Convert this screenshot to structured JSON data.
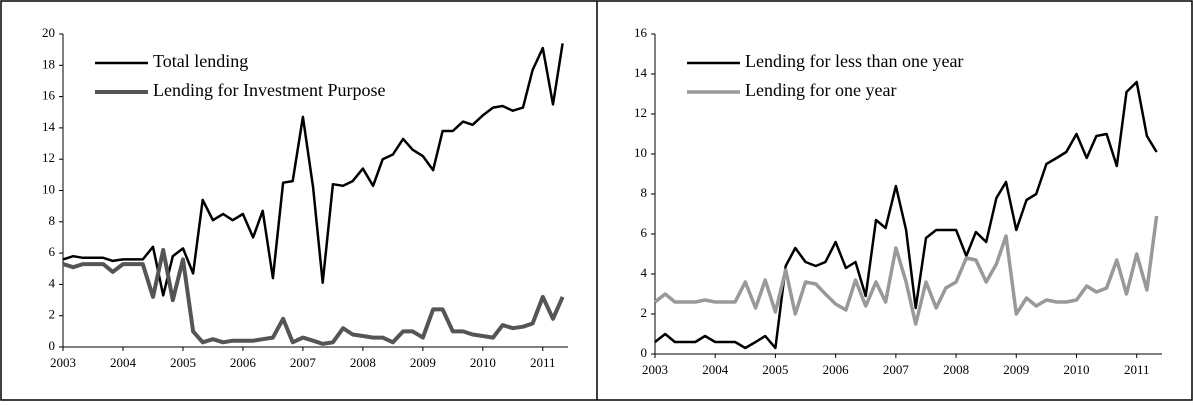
{
  "chart_data": [
    {
      "type": "line",
      "legend": "upper left",
      "x": [
        2003,
        2003.17,
        2003.33,
        2003.5,
        2003.67,
        2003.83,
        2004,
        2004.17,
        2004.33,
        2004.5,
        2004.67,
        2004.83,
        2005,
        2005.17,
        2005.33,
        2005.5,
        2005.67,
        2005.83,
        2006,
        2006.17,
        2006.33,
        2006.5,
        2006.67,
        2006.83,
        2007,
        2007.17,
        2007.33,
        2007.5,
        2007.67,
        2007.83,
        2008,
        2008.17,
        2008.33,
        2008.5,
        2008.67,
        2008.83,
        2009,
        2009.17,
        2009.33,
        2009.5,
        2009.67,
        2009.83,
        2010,
        2010.17,
        2010.33,
        2010.5,
        2010.67,
        2010.83,
        2011,
        2011.17,
        2011.33
      ],
      "xlim": [
        2003,
        2011.42
      ],
      "xticks": [
        2003,
        2004,
        2005,
        2006,
        2007,
        2008,
        2009,
        2010,
        2011
      ],
      "ylim": [
        0,
        20
      ],
      "yticks": [
        0,
        2,
        4,
        6,
        8,
        10,
        12,
        14,
        16,
        18,
        20
      ],
      "series": [
        {
          "name": "Total lending",
          "color": "#000000",
          "values": [
            5.6,
            5.8,
            5.7,
            5.7,
            5.7,
            5.5,
            5.6,
            5.6,
            5.6,
            6.4,
            3.3,
            5.8,
            6.3,
            4.7,
            9.4,
            8.1,
            8.5,
            8.1,
            8.5,
            7.0,
            8.7,
            4.4,
            10.5,
            10.6,
            14.7,
            10.2,
            4.1,
            10.4,
            10.3,
            10.6,
            11.4,
            10.3,
            12.0,
            12.3,
            13.3,
            12.6,
            12.2,
            11.3,
            13.8,
            13.8,
            14.4,
            14.2,
            14.8,
            15.3,
            15.4,
            15.1,
            15.3,
            17.7,
            19.1,
            15.5,
            19.4
          ]
        },
        {
          "name": "Lending for Investment Purpose",
          "color": "#555555",
          "values": [
            5.3,
            5.1,
            5.3,
            5.3,
            5.3,
            4.8,
            5.3,
            5.3,
            5.3,
            3.2,
            6.2,
            3.0,
            5.6,
            1.0,
            0.3,
            0.5,
            0.3,
            0.4,
            0.4,
            0.4,
            0.5,
            0.6,
            1.8,
            0.3,
            0.6,
            0.4,
            0.2,
            0.3,
            1.2,
            0.8,
            0.7,
            0.6,
            0.6,
            0.3,
            1.0,
            1.0,
            0.6,
            2.4,
            2.4,
            1.0,
            1.0,
            0.8,
            0.7,
            0.6,
            1.4,
            1.2,
            1.3,
            1.5,
            3.2,
            1.8,
            3.2
          ]
        }
      ]
    },
    {
      "type": "line",
      "legend": "upper left",
      "x": [
        2003,
        2003.17,
        2003.33,
        2003.5,
        2003.67,
        2003.83,
        2004,
        2004.17,
        2004.33,
        2004.5,
        2004.67,
        2004.83,
        2005,
        2005.17,
        2005.33,
        2005.5,
        2005.67,
        2005.83,
        2006,
        2006.17,
        2006.33,
        2006.5,
        2006.67,
        2006.83,
        2007,
        2007.17,
        2007.33,
        2007.5,
        2007.67,
        2007.83,
        2008,
        2008.17,
        2008.33,
        2008.5,
        2008.67,
        2008.83,
        2009,
        2009.17,
        2009.33,
        2009.5,
        2009.67,
        2009.83,
        2010,
        2010.17,
        2010.33,
        2010.5,
        2010.67,
        2010.83,
        2011,
        2011.17,
        2011.33
      ],
      "xlim": [
        2003,
        2011.42
      ],
      "xticks": [
        2003,
        2004,
        2005,
        2006,
        2007,
        2008,
        2009,
        2010,
        2011
      ],
      "ylim": [
        0,
        16
      ],
      "yticks": [
        0,
        2,
        4,
        6,
        8,
        10,
        12,
        14,
        16
      ],
      "series": [
        {
          "name": "Lending for less than one year",
          "color": "#000000",
          "values": [
            0.6,
            1.0,
            0.6,
            0.6,
            0.6,
            0.9,
            0.6,
            0.6,
            0.6,
            0.3,
            0.6,
            0.9,
            0.3,
            4.4,
            5.3,
            4.6,
            4.4,
            4.6,
            5.6,
            4.3,
            4.6,
            2.9,
            6.7,
            6.3,
            8.4,
            6.2,
            2.3,
            5.8,
            6.2,
            6.2,
            6.2,
            4.9,
            6.1,
            5.6,
            7.8,
            8.6,
            6.2,
            7.7,
            8.0,
            9.5,
            9.8,
            10.1,
            11.0,
            9.8,
            10.9,
            11.0,
            9.4,
            13.1,
            13.6,
            10.9,
            10.1
          ]
        },
        {
          "name": "Lending for one year",
          "color": "#999999",
          "values": [
            2.6,
            3.0,
            2.6,
            2.6,
            2.6,
            2.7,
            2.6,
            2.6,
            2.6,
            3.6,
            2.3,
            3.7,
            2.1,
            4.2,
            2.0,
            3.6,
            3.5,
            3.0,
            2.5,
            2.2,
            3.7,
            2.4,
            3.6,
            2.6,
            5.3,
            3.6,
            1.5,
            3.6,
            2.3,
            3.3,
            3.6,
            4.8,
            4.7,
            3.6,
            4.5,
            5.9,
            2.0,
            2.8,
            2.4,
            2.7,
            2.6,
            2.6,
            2.7,
            3.4,
            3.1,
            3.3,
            4.7,
            3.0,
            5.0,
            3.2,
            6.9
          ]
        }
      ]
    }
  ]
}
